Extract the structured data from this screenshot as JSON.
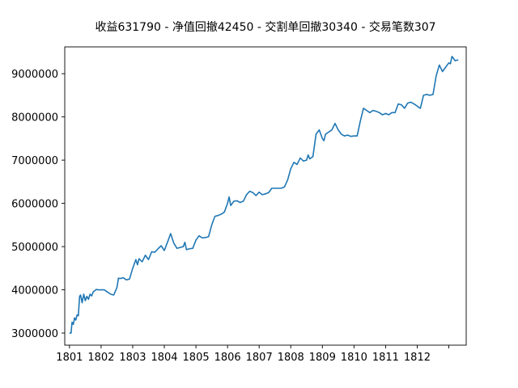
{
  "chart_data": {
    "type": "line",
    "title": "收益631790 - 净值回撤42450 - 交割单回撤30340 - 交易笔数307",
    "xlabel": "",
    "ylabel": "",
    "x_ticks": [
      "1801",
      "1802",
      "1803",
      "1804",
      "1805",
      "1806",
      "1807",
      "1808",
      "1809",
      "1810",
      "1811",
      "1812",
      ""
    ],
    "y_ticks": [
      "3000000",
      "4000000",
      "5000000",
      "6000000",
      "7000000",
      "8000000",
      "9000000"
    ],
    "xlim": [
      -0.15,
      12.55
    ],
    "ylim": [
      2720000,
      9620000
    ],
    "grid": false,
    "line_color": "#1f77b4",
    "series": [
      {
        "name": "",
        "x": [
          0.0,
          0.05,
          0.08,
          0.12,
          0.16,
          0.2,
          0.24,
          0.28,
          0.32,
          0.35,
          0.4,
          0.45,
          0.5,
          0.55,
          0.6,
          0.65,
          0.7,
          0.75,
          0.8,
          0.85,
          0.9,
          1.0,
          1.1,
          1.2,
          1.3,
          1.4,
          1.5,
          1.55,
          1.6,
          1.7,
          1.8,
          1.9,
          2.0,
          2.1,
          2.15,
          2.2,
          2.3,
          2.4,
          2.5,
          2.6,
          2.7,
          2.8,
          2.9,
          3.0,
          3.1,
          3.2,
          3.3,
          3.4,
          3.5,
          3.6,
          3.65,
          3.7,
          3.8,
          3.9,
          4.0,
          4.1,
          4.2,
          4.3,
          4.4,
          4.5,
          4.6,
          4.7,
          4.8,
          4.9,
          5.0,
          5.05,
          5.1,
          5.2,
          5.3,
          5.4,
          5.5,
          5.6,
          5.7,
          5.8,
          5.9,
          6.0,
          6.1,
          6.2,
          6.3,
          6.4,
          6.5,
          6.6,
          6.7,
          6.8,
          6.9,
          7.0,
          7.1,
          7.2,
          7.3,
          7.4,
          7.5,
          7.55,
          7.6,
          7.7,
          7.8,
          7.9,
          8.0,
          8.05,
          8.1,
          8.2,
          8.3,
          8.4,
          8.5,
          8.6,
          8.7,
          8.8,
          8.9,
          9.0,
          9.1,
          9.2,
          9.3,
          9.4,
          9.5,
          9.6,
          9.7,
          9.8,
          9.9,
          10.0,
          10.1,
          10.2,
          10.3,
          10.4,
          10.5,
          10.6,
          10.7,
          10.8,
          10.9,
          11.0,
          11.05,
          11.1,
          11.2,
          11.3,
          11.4,
          11.5,
          11.6,
          11.7,
          11.8,
          11.9,
          12.0,
          12.05,
          12.1,
          12.2,
          12.3
        ],
        "y": [
          3000000,
          3000000,
          3250000,
          3200000,
          3350000,
          3300000,
          3420000,
          3400000,
          3850000,
          3880000,
          3700000,
          3900000,
          3750000,
          3850000,
          3780000,
          3900000,
          3860000,
          3950000,
          3980000,
          4010000,
          4000000,
          4000000,
          4000000,
          3950000,
          3900000,
          3880000,
          4050000,
          4270000,
          4260000,
          4280000,
          4230000,
          4250000,
          4500000,
          4700000,
          4580000,
          4720000,
          4650000,
          4800000,
          4700000,
          4880000,
          4870000,
          4950000,
          5020000,
          4910000,
          5100000,
          5300000,
          5080000,
          4960000,
          4980000,
          5000000,
          5100000,
          4930000,
          4950000,
          4960000,
          5150000,
          5250000,
          5200000,
          5210000,
          5230000,
          5500000,
          5700000,
          5720000,
          5750000,
          5800000,
          6000000,
          6150000,
          5950000,
          6050000,
          6060000,
          6020000,
          6050000,
          6200000,
          6280000,
          6250000,
          6180000,
          6260000,
          6200000,
          6220000,
          6250000,
          6350000,
          6350000,
          6350000,
          6350000,
          6380000,
          6540000,
          6800000,
          6950000,
          6900000,
          7050000,
          6980000,
          7000000,
          7120000,
          7030000,
          7080000,
          7600000,
          7700000,
          7500000,
          7450000,
          7600000,
          7650000,
          7700000,
          7850000,
          7700000,
          7600000,
          7560000,
          7580000,
          7550000,
          7560000,
          7560000,
          7900000,
          8200000,
          8150000,
          8100000,
          8150000,
          8130000,
          8100000,
          8050000,
          8080000,
          8050000,
          8100000,
          8100000,
          8300000,
          8280000,
          8200000,
          8320000,
          8340000,
          8300000,
          8250000,
          8220000,
          8200000,
          8500000,
          8520000,
          8500000,
          8520000,
          8950000,
          9200000,
          9050000,
          9150000,
          9250000,
          9230000,
          9400000,
          9300000,
          9320000
        ]
      }
    ]
  }
}
